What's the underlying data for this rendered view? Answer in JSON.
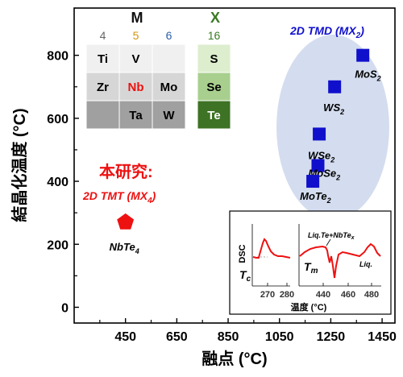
{
  "chart_data": {
    "type": "scatter",
    "xlabel": "融点 (°C)",
    "ylabel": "結晶化温度 (°C)",
    "xlim": [
      250,
      1500
    ],
    "ylim": [
      -50,
      950
    ],
    "xticks": [
      450,
      650,
      850,
      1050,
      1250,
      1450
    ],
    "yticks": [
      0,
      200,
      400,
      600,
      800
    ],
    "tmd_group_label": "2D TMD (MX",
    "tmd_group_label_sub": "2",
    "tmd_group_label_end": ")",
    "tmt_heading": "本研究:",
    "tmt_group_label": "2D TMT (MX",
    "tmt_group_label_sub": "4",
    "tmt_group_label_end": ")",
    "series": [
      {
        "name": "2D TMD (MX2)",
        "marker": "square",
        "color": "#1010cc",
        "points": [
          {
            "base": "MoS",
            "sub": "2",
            "x": 1375,
            "y": 800
          },
          {
            "base": "WS",
            "sub": "2",
            "x": 1265,
            "y": 700
          },
          {
            "base": "WSe",
            "sub": "2",
            "x": 1205,
            "y": 550
          },
          {
            "base": "MoSe",
            "sub": "2",
            "x": 1200,
            "y": 450
          },
          {
            "base": "MoTe",
            "sub": "2",
            "x": 1180,
            "y": 400
          }
        ]
      },
      {
        "name": "2D TMT (MX4)",
        "marker": "pentagon",
        "color": "#ee1111",
        "points": [
          {
            "base": "NbTe",
            "sub": "4",
            "x": 450,
            "y": 270
          }
        ]
      }
    ],
    "periodic_table": {
      "group_m_label": "M",
      "group_x_label": "X",
      "column_numbers": [
        "4",
        "5",
        "6",
        "16"
      ],
      "rows": [
        [
          "Ti",
          "V",
          "",
          "S"
        ],
        [
          "Zr",
          "Nb",
          "Mo",
          "Se"
        ],
        [
          "",
          "Ta",
          "W",
          "Te"
        ]
      ]
    },
    "dsc_inset": {
      "ylabel": "DSC",
      "xlabel": "温度 (°C)",
      "left_xticks": [
        "270",
        "280"
      ],
      "right_xticks": [
        "440",
        "460",
        "480"
      ],
      "tc_label": "T",
      "tc_sub": "c",
      "tm_label": "T",
      "tm_sub": "m",
      "liq_te_label": "Liq.Te+NbTe",
      "liq_te_sub": "x",
      "liq_label": "Liq."
    }
  },
  "colors": {
    "tmd": "#1010cc",
    "tmt": "#ee1111",
    "ellipse": "#d4ddef",
    "m_header": "#111111",
    "x_header": "#3a7a23",
    "col4": "#666666",
    "col5": "#d4940a",
    "col6": "#2a5fa8",
    "col16": "#3a7a23"
  }
}
